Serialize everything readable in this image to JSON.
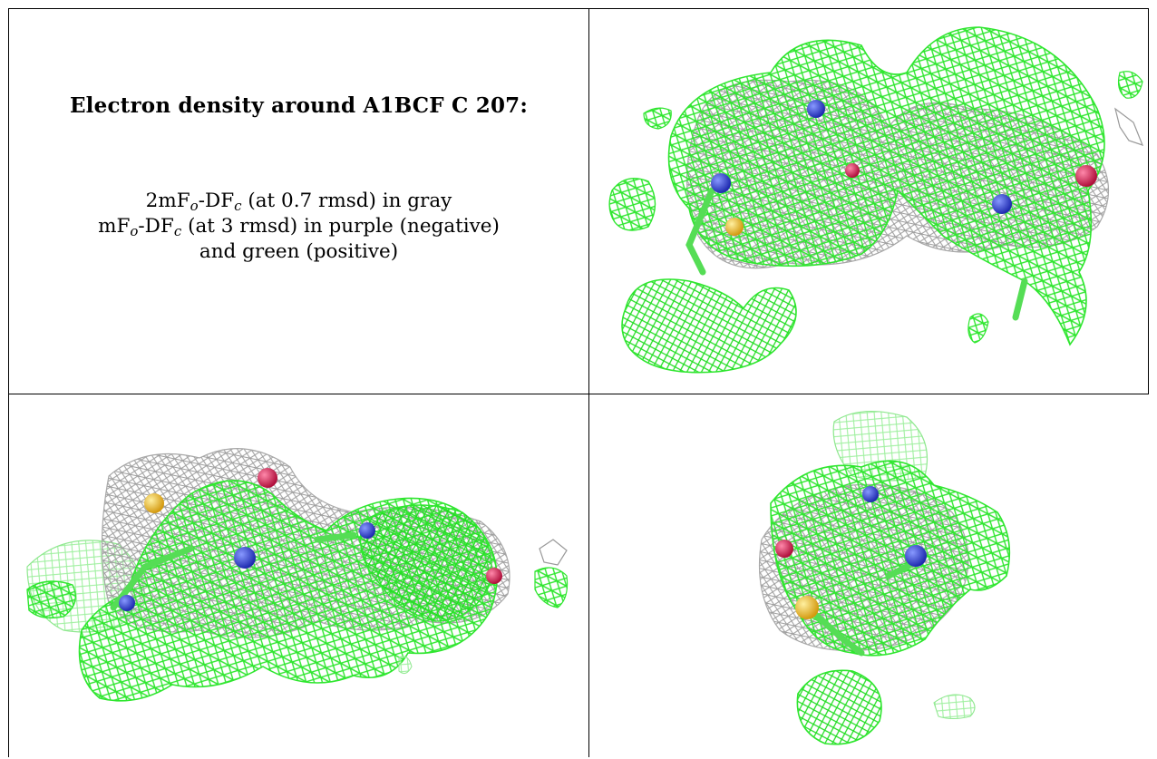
{
  "caption": {
    "title": "Electron density around A1BCF C 207:",
    "line1": {
      "prefix": "2mF",
      "sub1": "o",
      "mid": "-DF",
      "sub2": "c",
      "suffix": " (at 0.7 rmsd) in gray"
    },
    "line2": {
      "prefix": "mF",
      "sub1": "o",
      "mid": "-DF",
      "sub2": "c",
      "suffix": " (at 3 rmsd) in purple (negative)"
    },
    "line3": "and green (positive)"
  },
  "views": [
    {
      "id": "view-top-right",
      "content": "density-mesh-render"
    },
    {
      "id": "view-bottom-left",
      "content": "density-mesh-render"
    },
    {
      "id": "view-bottom-right",
      "content": "density-mesh-render"
    }
  ],
  "colors": {
    "positive_mesh": "#33ee33",
    "map_mesh": "#a8a8a8",
    "carbon": "#55dd55",
    "nitrogen": "#3344cc",
    "oxygen": "#dd2255",
    "sulfur": "#eebb33"
  }
}
